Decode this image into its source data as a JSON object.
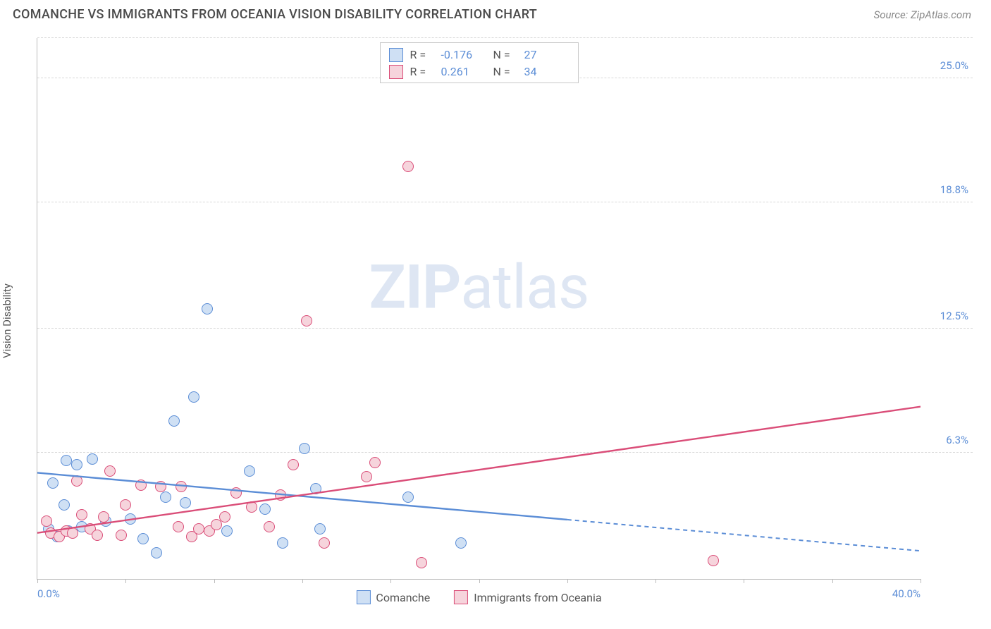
{
  "header": {
    "title": "COMANCHE VS IMMIGRANTS FROM OCEANIA VISION DISABILITY CORRELATION CHART",
    "source": "Source: ZipAtlas.com"
  },
  "ylabel": "Vision Disability",
  "watermark_a": "ZIP",
  "watermark_b": "atlas",
  "chart": {
    "type": "scatter",
    "xlim": [
      0,
      40
    ],
    "ylim": [
      0,
      27
    ],
    "x_ticks": [
      0,
      4,
      8,
      12,
      16,
      20,
      24,
      28,
      32,
      36,
      40
    ],
    "x_tick_labels_shown": {
      "0": "0.0%",
      "40": "40.0%"
    },
    "y_ticks": [
      6.3,
      12.5,
      18.8,
      25.0
    ],
    "y_tick_labels": [
      "6.3%",
      "12.5%",
      "18.8%",
      "25.0%"
    ],
    "grid_color": "#d8d8d8",
    "axis_color": "#bbbbbb",
    "background_color": "#ffffff",
    "tick_label_color": "#5b8dd6",
    "series": [
      {
        "name": "Comanche",
        "short": "comanche",
        "R": "-0.176",
        "N": "27",
        "fill": "#cfe0f4",
        "stroke": "#5b8dd6",
        "trend": {
          "y_at_x0": 5.3,
          "y_at_x40": 1.4,
          "solid_until_x": 24.0
        },
        "points": [
          [
            0.5,
            2.5
          ],
          [
            0.7,
            4.8
          ],
          [
            0.9,
            2.1
          ],
          [
            1.2,
            3.7
          ],
          [
            1.3,
            5.9
          ],
          [
            1.4,
            2.4
          ],
          [
            1.8,
            5.7
          ],
          [
            2.0,
            2.6
          ],
          [
            2.5,
            6.0
          ],
          [
            3.1,
            2.9
          ],
          [
            4.2,
            3.0
          ],
          [
            4.8,
            2.0
          ],
          [
            5.4,
            1.3
          ],
          [
            5.8,
            4.1
          ],
          [
            6.2,
            7.9
          ],
          [
            6.7,
            3.8
          ],
          [
            7.1,
            9.1
          ],
          [
            7.7,
            13.5
          ],
          [
            8.6,
            2.4
          ],
          [
            9.6,
            5.4
          ],
          [
            10.3,
            3.5
          ],
          [
            11.1,
            1.8
          ],
          [
            12.1,
            6.5
          ],
          [
            12.6,
            4.5
          ],
          [
            12.8,
            2.5
          ],
          [
            16.8,
            4.1
          ],
          [
            19.2,
            1.8
          ]
        ]
      },
      {
        "name": "Immigrants from Oceania",
        "short": "oceania",
        "R": "0.261",
        "N": "34",
        "fill": "#f6d4dc",
        "stroke": "#da4d78",
        "trend": {
          "y_at_x0": 2.3,
          "y_at_x40": 8.6,
          "solid_until_x": 40.0
        },
        "points": [
          [
            0.4,
            2.9
          ],
          [
            0.6,
            2.3
          ],
          [
            1.0,
            2.1
          ],
          [
            1.3,
            2.4
          ],
          [
            1.6,
            2.3
          ],
          [
            1.8,
            4.9
          ],
          [
            2.0,
            3.2
          ],
          [
            2.4,
            2.5
          ],
          [
            2.7,
            2.2
          ],
          [
            3.0,
            3.1
          ],
          [
            3.3,
            5.4
          ],
          [
            3.8,
            2.2
          ],
          [
            4.0,
            3.7
          ],
          [
            4.7,
            4.7
          ],
          [
            5.6,
            4.6
          ],
          [
            6.4,
            2.6
          ],
          [
            6.5,
            4.6
          ],
          [
            7.0,
            2.1
          ],
          [
            7.3,
            2.5
          ],
          [
            7.8,
            2.4
          ],
          [
            8.1,
            2.7
          ],
          [
            8.5,
            3.1
          ],
          [
            9.0,
            4.3
          ],
          [
            9.7,
            3.6
          ],
          [
            10.5,
            2.6
          ],
          [
            11.0,
            4.2
          ],
          [
            11.6,
            5.7
          ],
          [
            12.2,
            12.9
          ],
          [
            13.0,
            1.8
          ],
          [
            14.9,
            5.1
          ],
          [
            15.3,
            5.8
          ],
          [
            16.8,
            20.6
          ],
          [
            17.4,
            0.8
          ],
          [
            30.6,
            0.9
          ]
        ]
      }
    ]
  },
  "legend_bottom": [
    {
      "label": "Comanche",
      "fill": "#cfe0f4",
      "stroke": "#5b8dd6"
    },
    {
      "label": "Immigrants from Oceania",
      "fill": "#f6d4dc",
      "stroke": "#da4d78"
    }
  ]
}
